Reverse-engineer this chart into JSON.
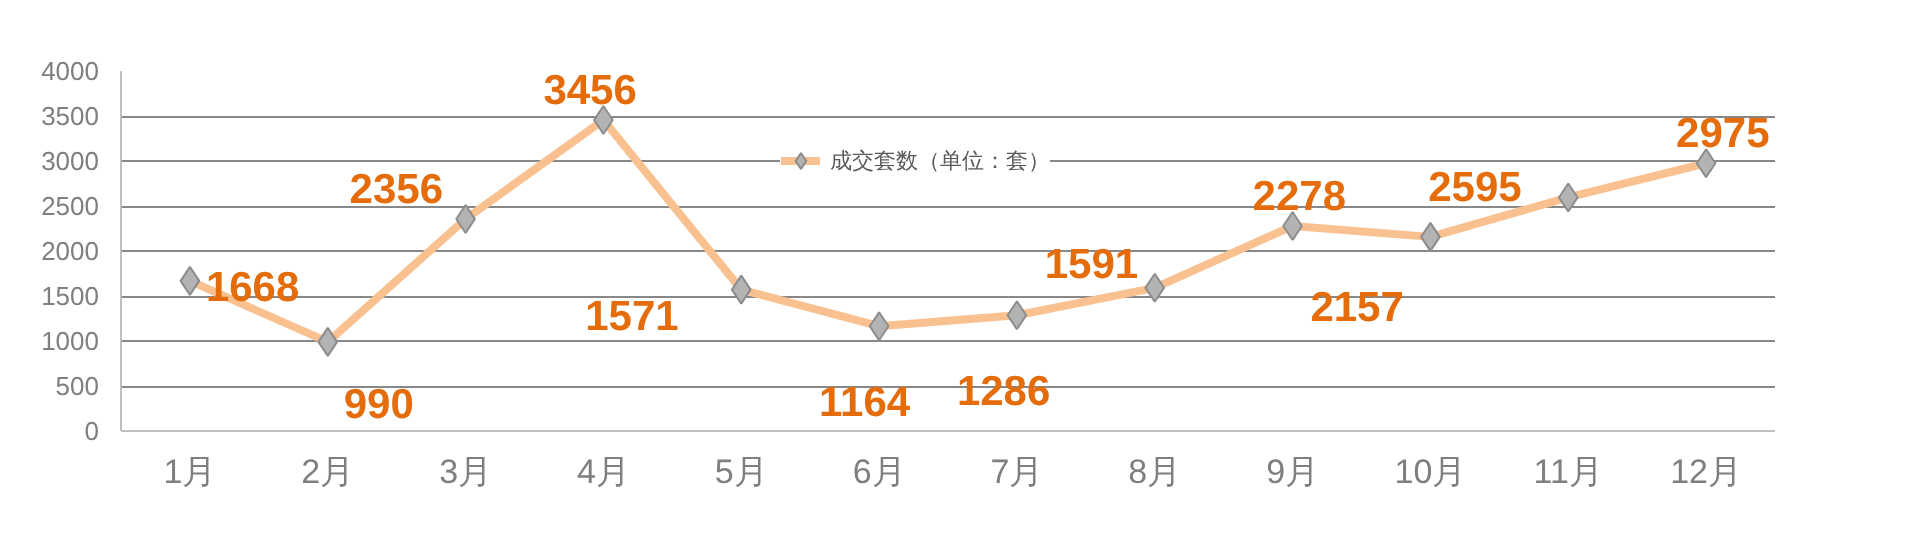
{
  "chart_data": {
    "type": "line",
    "categories": [
      "1月",
      "2月",
      "3月",
      "4月",
      "5月",
      "6月",
      "7月",
      "8月",
      "9月",
      "10月",
      "11月",
      "12月"
    ],
    "series": [
      {
        "name": "成交套数（单位：套）",
        "color": "#f9c090",
        "values": [
          1668,
          990,
          2356,
          3456,
          1571,
          1164,
          1286,
          1591,
          2278,
          2157,
          2595,
          2975
        ]
      }
    ],
    "ylim": [
      0,
      4000
    ],
    "yticks": [
      0,
      500,
      1000,
      1500,
      2000,
      2500,
      3000,
      3500,
      4000
    ],
    "grid": "y",
    "legend": "top right",
    "marker": "diamond",
    "line_style": "solid",
    "data_labels": true
  }
}
